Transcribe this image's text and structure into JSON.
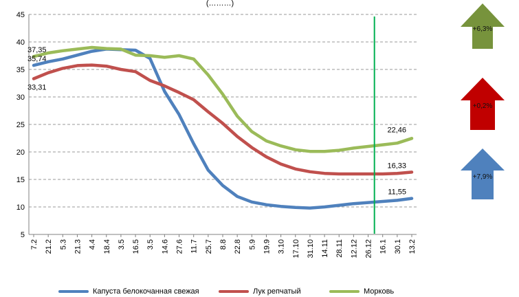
{
  "chart_data": {
    "type": "line",
    "title": "(………)",
    "categories": [
      "7.2",
      "21.2",
      "5.3",
      "21.3",
      "4.4",
      "18.4",
      "3.5",
      "16.5",
      "3.5",
      "14.6",
      "27.6",
      "11.7",
      "25.7",
      "8.8",
      "22.8",
      "5.9",
      "19.9",
      "3.10",
      "17.10",
      "31.10",
      "14.11",
      "28.11",
      "12.12",
      "26.12",
      "16.1",
      "30.1",
      "13.2"
    ],
    "ylim": [
      5,
      45
    ],
    "yticks": [
      5,
      10,
      15,
      20,
      25,
      30,
      35,
      40,
      45
    ],
    "grid": true,
    "legend_position": "bottom",
    "vline_index": 24,
    "vline_color": "#00b050",
    "series": [
      {
        "name": "Капуста белокочанная свежая",
        "color": "#4f81bd",
        "values": [
          35.74,
          36.4,
          36.9,
          37.6,
          38.3,
          38.7,
          38.6,
          38.5,
          37.0,
          31.0,
          26.8,
          21.5,
          16.7,
          13.9,
          11.9,
          10.9,
          10.4,
          10.1,
          9.9,
          9.8,
          10.0,
          10.3,
          10.6,
          10.8,
          11.0,
          11.2,
          11.55
        ],
        "start_label": "35,74",
        "end_label": "11,55"
      },
      {
        "name": "Лук репчатый",
        "color": "#c0504d",
        "values": [
          33.31,
          34.4,
          35.2,
          35.7,
          35.8,
          35.6,
          35.0,
          34.6,
          33.0,
          32.0,
          30.8,
          29.5,
          27.3,
          25.2,
          22.8,
          20.8,
          19.1,
          17.8,
          16.9,
          16.4,
          16.1,
          16.0,
          16.0,
          16.0,
          16.0,
          16.1,
          16.33
        ],
        "start_label": "33,31",
        "end_label": "16,33"
      },
      {
        "name": "Морковь",
        "color": "#9bbb59",
        "values": [
          37.35,
          38.0,
          38.4,
          38.7,
          39.0,
          38.8,
          38.7,
          37.6,
          37.5,
          37.2,
          37.5,
          36.9,
          34.0,
          30.5,
          26.5,
          23.7,
          22.0,
          21.1,
          20.4,
          20.1,
          20.1,
          20.3,
          20.7,
          21.0,
          21.3,
          21.6,
          22.46
        ],
        "start_label": "37,35",
        "end_label": "22,46"
      }
    ]
  },
  "indicators": [
    {
      "label": "+6,3%",
      "color": "#77933c",
      "direction": "up"
    },
    {
      "label": "+0,2%",
      "color": "#c00000",
      "direction": "up"
    },
    {
      "label": "+7,9%",
      "color": "#4f81bd",
      "direction": "up"
    }
  ]
}
